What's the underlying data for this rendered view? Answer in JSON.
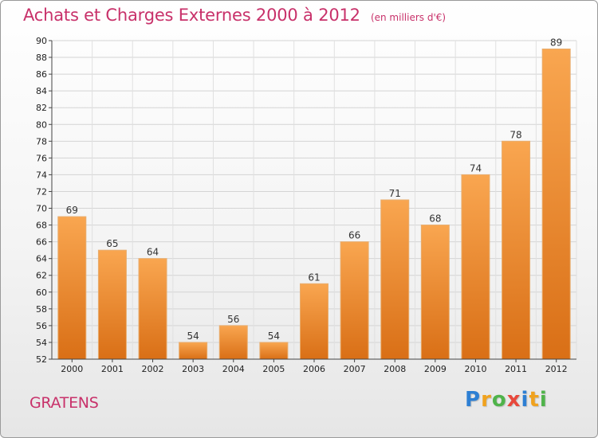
{
  "chart_data": {
    "type": "bar",
    "title": "Achats et Charges Externes 2000 à 2012",
    "subtitle": "(en milliers d'€)",
    "categories": [
      "2000",
      "2001",
      "2002",
      "2003",
      "2004",
      "2005",
      "2006",
      "2007",
      "2008",
      "2009",
      "2010",
      "2011",
      "2012"
    ],
    "values": [
      69,
      65,
      64,
      54,
      56,
      54,
      61,
      66,
      71,
      68,
      74,
      78,
      89
    ],
    "xlabel": "",
    "ylabel": "",
    "ylim": [
      52,
      90
    ],
    "yticks": [
      52,
      54,
      56,
      58,
      60,
      62,
      64,
      66,
      68,
      70,
      72,
      74,
      76,
      78,
      80,
      82,
      84,
      86,
      88,
      90
    ],
    "grid": true,
    "data_labels": true,
    "bar_color": "#f08a28"
  },
  "footer": {
    "commune": "GRATENS",
    "brand_letters": [
      {
        "ch": "P",
        "color": "#2d7fd3"
      },
      {
        "ch": "r",
        "color": "#f0a21e"
      },
      {
        "ch": "o",
        "color": "#4fb34a"
      },
      {
        "ch": "x",
        "color": "#e8483b"
      },
      {
        "ch": "i",
        "color": "#2d7fd3"
      },
      {
        "ch": "t",
        "color": "#f0a21e"
      },
      {
        "ch": "i",
        "color": "#4fb34a"
      }
    ]
  }
}
